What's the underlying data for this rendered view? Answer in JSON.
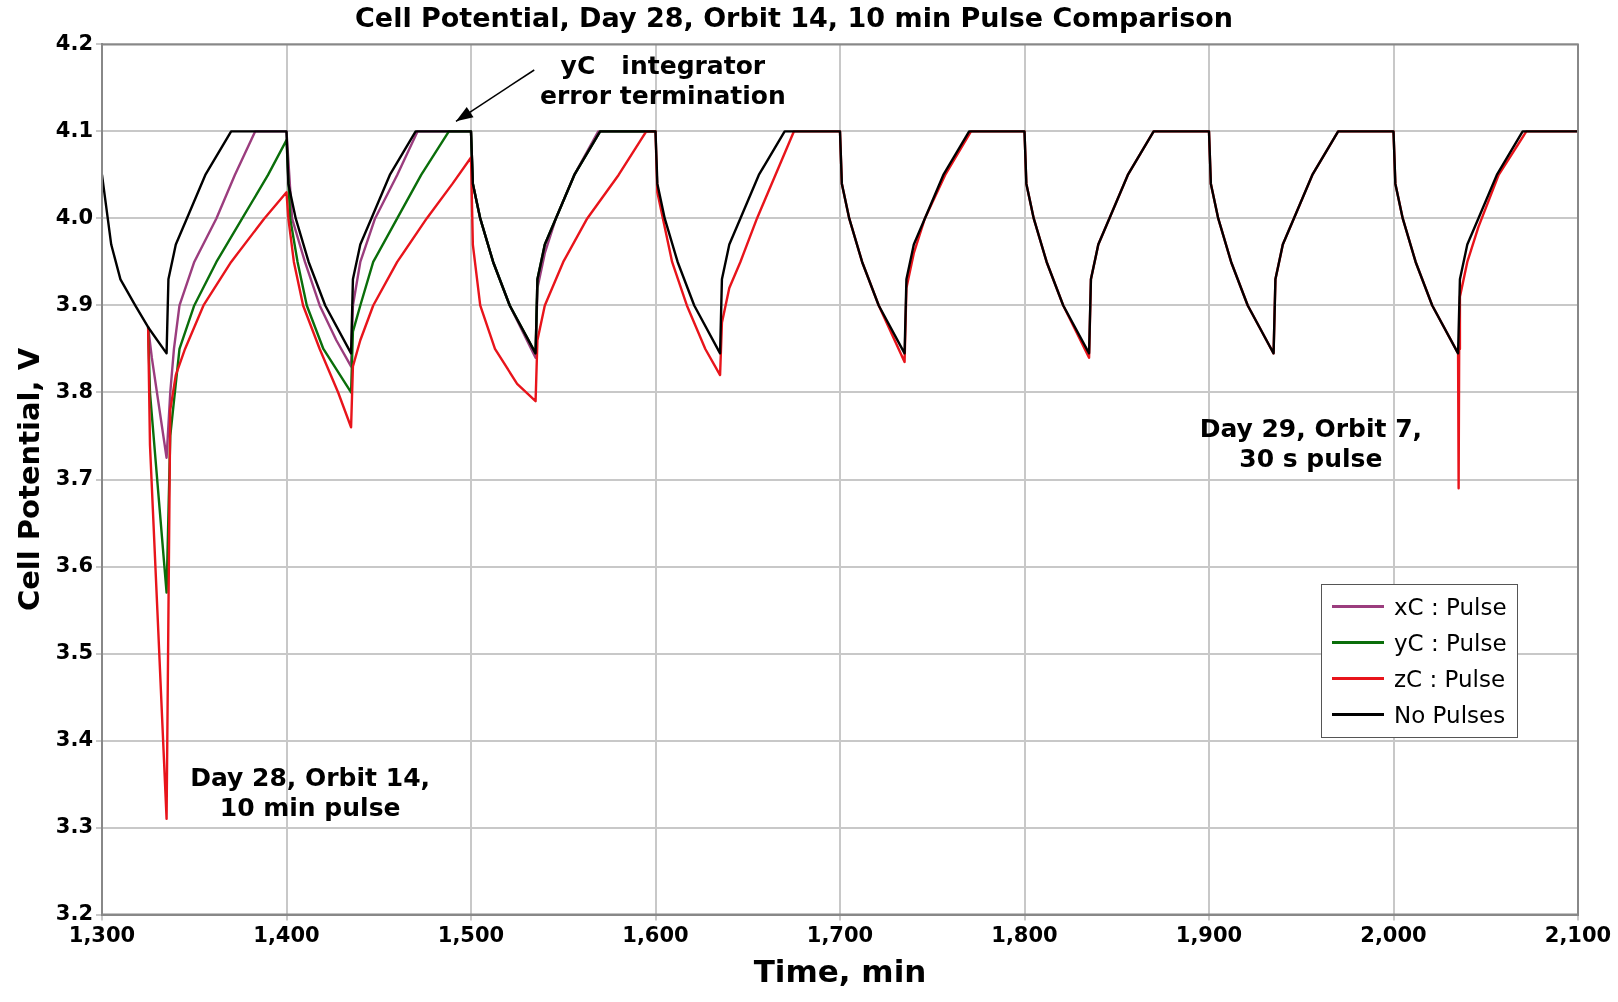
{
  "chart_data": {
    "type": "line",
    "title": "Cell Potential, Day 28, Orbit 14, 10 min Pulse Comparison",
    "xlabel": "Time, min",
    "ylabel": "Cell Potential, V",
    "xlim": [
      1300,
      2100
    ],
    "xticks": [
      {
        "value": 1300,
        "label": "1,300"
      },
      {
        "value": 1400,
        "label": "1,400"
      },
      {
        "value": 1500,
        "label": "1,500"
      },
      {
        "value": 1600,
        "label": "1,600"
      },
      {
        "value": 1700,
        "label": "1,700"
      },
      {
        "value": 1800,
        "label": "1,800"
      },
      {
        "value": 1900,
        "label": "1,900"
      },
      {
        "value": 2000,
        "label": "2,000"
      },
      {
        "value": 2100,
        "label": "2,100"
      }
    ],
    "ylim": [
      3.2,
      4.2
    ],
    "yticks": [
      {
        "value": 3.2,
        "label": "3.2"
      },
      {
        "value": 3.3,
        "label": "3.3"
      },
      {
        "value": 3.4,
        "label": "3.4"
      },
      {
        "value": 3.5,
        "label": "3.5"
      },
      {
        "value": 3.6,
        "label": "3.6"
      },
      {
        "value": 3.7,
        "label": "3.7"
      },
      {
        "value": 3.8,
        "label": "3.8"
      },
      {
        "value": 3.9,
        "label": "3.9"
      },
      {
        "value": 4.0,
        "label": "4.0"
      },
      {
        "value": 4.1,
        "label": "4.1"
      },
      {
        "value": 4.2,
        "label": "4.2"
      }
    ],
    "grid": true,
    "legend": "right",
    "marker": "none",
    "line_style": "solid",
    "annotations": [
      "yC   integrator\nerror termination",
      "Day 28, Orbit 14,\n10 min pulse",
      "Day 29, Orbit 7,\n30 s pulse"
    ],
    "series": [
      {
        "name": "xC : Pulse",
        "color": "#9b3d7e",
        "x": [
          1325,
          1327,
          1335,
          1337,
          1339,
          1342,
          1350,
          1362,
          1372,
          1383,
          1400,
          1403,
          1410,
          1418,
          1427,
          1435,
          1436,
          1440,
          1448,
          1460,
          1471,
          1500,
          1501,
          1505,
          1512,
          1521,
          1535,
          1536,
          1540,
          1546,
          1556,
          1569,
          1600
        ],
        "values": [
          3.875,
          3.84,
          3.725,
          3.8,
          3.85,
          3.9,
          3.95,
          4.0,
          4.05,
          4.1,
          4.1,
          4.0,
          3.95,
          3.9,
          3.86,
          3.83,
          3.9,
          3.95,
          4.0,
          4.05,
          4.1,
          4.1,
          4.04,
          4.0,
          3.95,
          3.9,
          3.84,
          3.92,
          3.96,
          4.0,
          4.05,
          4.1,
          4.1
        ]
      },
      {
        "name": "yC : Pulse",
        "color": "#0a6e0a",
        "x": [
          1325,
          1326,
          1335,
          1337,
          1342,
          1350,
          1362,
          1376,
          1390,
          1400,
          1402,
          1406,
          1411,
          1420,
          1435,
          1436,
          1440,
          1447,
          1460,
          1473,
          1488,
          1500,
          1501,
          1505,
          1512,
          1521,
          1535,
          1536,
          1540,
          1546,
          1556,
          1570,
          1600
        ],
        "values": [
          3.875,
          3.8,
          3.57,
          3.75,
          3.85,
          3.9,
          3.95,
          4.0,
          4.05,
          4.09,
          4.0,
          3.95,
          3.9,
          3.85,
          3.8,
          3.87,
          3.9,
          3.95,
          4.0,
          4.05,
          4.1,
          4.1,
          4.04,
          4.0,
          3.95,
          3.9,
          3.845,
          3.93,
          3.97,
          4.0,
          4.05,
          4.1,
          4.1
        ]
      },
      {
        "name": "zC : Pulse",
        "color": "#e8141b",
        "x": [
          1325,
          1326,
          1330,
          1335,
          1337,
          1340,
          1345,
          1355,
          1370,
          1388,
          1400,
          1401,
          1404,
          1409,
          1418,
          1428,
          1435,
          1436,
          1440,
          1447,
          1460,
          1476,
          1490,
          1500,
          1501,
          1505,
          1513,
          1525,
          1535,
          1536,
          1540,
          1550,
          1563,
          1580,
          1595,
          1600,
          1601,
          1604,
          1609,
          1617,
          1627,
          1635,
          1636,
          1640,
          1646,
          1655,
          1665,
          1675,
          1700,
          1701,
          1705,
          1712,
          1721,
          1735,
          1736,
          1740,
          1746,
          1757,
          1771,
          1800,
          1801,
          1805,
          1812,
          1821,
          1835,
          1836,
          1840,
          1846,
          1856,
          1870,
          1900,
          1901,
          1905,
          1912,
          1921,
          1935,
          1936,
          1940,
          1946,
          1956,
          1970,
          2000,
          2001,
          2005,
          2012,
          2021,
          2035,
          2035.3,
          2035.6,
          2036,
          2040,
          2046,
          2057,
          2072,
          2100
        ],
        "values": [
          3.875,
          3.74,
          3.55,
          3.31,
          3.78,
          3.82,
          3.85,
          3.9,
          3.95,
          4.0,
          4.03,
          4.0,
          3.95,
          3.9,
          3.85,
          3.8,
          3.76,
          3.83,
          3.86,
          3.9,
          3.95,
          4.0,
          4.04,
          4.07,
          3.97,
          3.9,
          3.85,
          3.81,
          3.79,
          3.86,
          3.9,
          3.95,
          4.0,
          4.05,
          4.1,
          4.1,
          4.03,
          4.0,
          3.95,
          3.9,
          3.85,
          3.82,
          3.88,
          3.92,
          3.95,
          4.0,
          4.05,
          4.1,
          4.1,
          4.04,
          4.0,
          3.95,
          3.9,
          3.835,
          3.92,
          3.96,
          4.0,
          4.05,
          4.1,
          4.1,
          4.04,
          4.0,
          3.95,
          3.9,
          3.84,
          3.93,
          3.97,
          4.0,
          4.05,
          4.1,
          4.1,
          4.04,
          4.0,
          3.95,
          3.9,
          3.845,
          3.93,
          3.97,
          4.0,
          4.05,
          4.1,
          4.1,
          4.04,
          4.0,
          3.95,
          3.9,
          3.845,
          3.69,
          3.85,
          3.91,
          3.95,
          3.99,
          4.05,
          4.1,
          4.1
        ]
      },
      {
        "name": "No Pulses",
        "color": "#000000",
        "x": [
          1300,
          1305,
          1310,
          1318,
          1325,
          1335,
          1336,
          1340,
          1346,
          1356,
          1370,
          1400,
          1401,
          1405,
          1412,
          1421,
          1435,
          1436,
          1440,
          1446,
          1456,
          1470,
          1500,
          1501,
          1505,
          1512,
          1521,
          1535,
          1536,
          1540,
          1546,
          1556,
          1570,
          1600,
          1601,
          1605,
          1612,
          1621,
          1635,
          1636,
          1640,
          1646,
          1656,
          1670,
          1700,
          1701,
          1705,
          1712,
          1721,
          1735,
          1736,
          1740,
          1746,
          1756,
          1770,
          1800,
          1801,
          1805,
          1812,
          1821,
          1835,
          1836,
          1840,
          1846,
          1856,
          1870,
          1900,
          1901,
          1905,
          1912,
          1921,
          1935,
          1936,
          1940,
          1946,
          1956,
          1970,
          2000,
          2001,
          2005,
          2012,
          2021,
          2035,
          2036,
          2040,
          2046,
          2056,
          2070,
          2100
        ],
        "values": [
          4.05,
          3.97,
          3.93,
          3.9,
          3.875,
          3.845,
          3.93,
          3.97,
          4.0,
          4.05,
          4.1,
          4.1,
          4.04,
          4.0,
          3.95,
          3.9,
          3.845,
          3.93,
          3.97,
          4.0,
          4.05,
          4.1,
          4.1,
          4.04,
          4.0,
          3.95,
          3.9,
          3.845,
          3.93,
          3.97,
          4.0,
          4.05,
          4.1,
          4.1,
          4.04,
          4.0,
          3.95,
          3.9,
          3.845,
          3.93,
          3.97,
          4.0,
          4.05,
          4.1,
          4.1,
          4.04,
          4.0,
          3.95,
          3.9,
          3.845,
          3.93,
          3.97,
          4.0,
          4.05,
          4.1,
          4.1,
          4.04,
          4.0,
          3.95,
          3.9,
          3.845,
          3.93,
          3.97,
          4.0,
          4.05,
          4.1,
          4.1,
          4.04,
          4.0,
          3.95,
          3.9,
          3.845,
          3.93,
          3.97,
          4.0,
          4.05,
          4.1,
          4.1,
          4.04,
          4.0,
          3.95,
          3.9,
          3.845,
          3.93,
          3.97,
          4.0,
          4.05,
          4.1,
          4.1
        ]
      }
    ]
  }
}
